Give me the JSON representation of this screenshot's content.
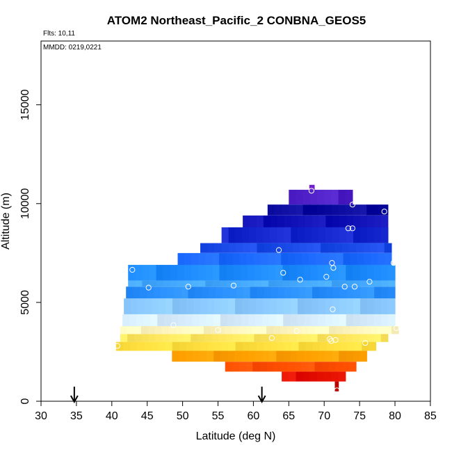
{
  "chart_data": {
    "type": "heatmap",
    "title": "ATOM2 Northeast_Pacific_2 CONBNA_GEOS5",
    "flights_label": "Flts: 10,11",
    "mmdd_label": "MMDD: 0219,0221",
    "xlabel": "Latitude (deg N)",
    "ylabel": "Altitude (m)",
    "xlim": [
      30,
      85
    ],
    "ylim": [
      0,
      18500
    ],
    "x_ticks": [
      30,
      35,
      40,
      45,
      50,
      55,
      60,
      65,
      70,
      75,
      80,
      85
    ],
    "y_ticks": [
      0,
      5000,
      10000,
      15000
    ],
    "grid": false,
    "arrows_latitude": [
      34.7,
      61.2
    ],
    "colors": {
      "palette": [
        "#ffffff",
        "#fff4b8",
        "#ffe95a",
        "#ffc800",
        "#ff9800",
        "#ff5a00",
        "#ff1e00",
        "#cc0000"
      ],
      "cool": [
        "#ffffff",
        "#b4dcff",
        "#1e9bff",
        "#1e64ff",
        "#1414c8",
        "#08089b",
        "#6e28e6"
      ]
    },
    "bands": [
      {
        "alt": [
          10700,
          10950
        ],
        "lat": [
          67.9,
          68.6
        ],
        "color": "#7b2bd8"
      },
      {
        "alt": [
          9950,
          10700
        ],
        "lat": [
          65.0,
          74.0
        ],
        "color": "#4f20c8"
      },
      {
        "alt": [
          9400,
          9950
        ],
        "lat": [
          62.0,
          79.0
        ],
        "color": "#0a0a9e"
      },
      {
        "alt": [
          8800,
          9400
        ],
        "lat": [
          58.5,
          79.0
        ],
        "color": "#1111b8"
      },
      {
        "alt": [
          8000,
          8800
        ],
        "lat": [
          55.5,
          79.0
        ],
        "color": "#1528d0"
      },
      {
        "alt": [
          7500,
          8000
        ],
        "lat": [
          52.5,
          79.5
        ],
        "color": "#1a4be8"
      },
      {
        "alt": [
          6900,
          7500
        ],
        "lat": [
          49.3,
          79.5
        ],
        "color": "#1e6bff"
      },
      {
        "alt": [
          6100,
          6900
        ],
        "lat": [
          42.3,
          80.0
        ],
        "color": "#1e8cff"
      },
      {
        "alt": [
          5800,
          6100
        ],
        "lat": [
          42.3,
          80.0
        ],
        "color": "#44a8ff"
      },
      {
        "alt": [
          5200,
          5800
        ],
        "lat": [
          42.0,
          80.0
        ],
        "color": "#2a90ff"
      },
      {
        "alt": [
          4400,
          5200
        ],
        "lat": [
          41.7,
          80.0
        ],
        "color": "#8ccaff"
      },
      {
        "alt": [
          3800,
          4400
        ],
        "lat": [
          41.5,
          80.0
        ],
        "color": "#d8eeff"
      },
      {
        "alt": [
          3400,
          3800
        ],
        "lat": [
          41.2,
          80.5
        ],
        "color": "#fff6c0"
      },
      {
        "alt": [
          3000,
          3400
        ],
        "lat": [
          41.2,
          79.0
        ],
        "color": "#ffe860"
      },
      {
        "alt": [
          2550,
          3000
        ],
        "lat": [
          40.6,
          77.3
        ],
        "color": "#ffe040"
      },
      {
        "alt": [
          2000,
          2550
        ],
        "lat": [
          48.5,
          76.0
        ],
        "color": "#ffa000"
      },
      {
        "alt": [
          1500,
          2000
        ],
        "lat": [
          56.0,
          74.5
        ],
        "color": "#ff5000"
      },
      {
        "alt": [
          1000,
          1500
        ],
        "lat": [
          64.0,
          73.0
        ],
        "color": "#e61000"
      },
      {
        "alt": [
          500,
          1000
        ],
        "lat": [
          71.5,
          72.0
        ],
        "color": "#c80000"
      }
    ],
    "observations": [
      {
        "x": 68.2,
        "y": 10650
      },
      {
        "x": 74.0,
        "y": 9950
      },
      {
        "x": 78.5,
        "y": 9600
      },
      {
        "x": 73.4,
        "y": 8750
      },
      {
        "x": 74.0,
        "y": 8750
      },
      {
        "x": 63.6,
        "y": 7650
      },
      {
        "x": 71.1,
        "y": 7000
      },
      {
        "x": 71.3,
        "y": 6750
      },
      {
        "x": 79.8,
        "y": 7000
      },
      {
        "x": 42.9,
        "y": 6650
      },
      {
        "x": 64.2,
        "y": 6500
      },
      {
        "x": 66.6,
        "y": 6150
      },
      {
        "x": 70.3,
        "y": 6300
      },
      {
        "x": 76.4,
        "y": 6050
      },
      {
        "x": 45.2,
        "y": 5750
      },
      {
        "x": 50.8,
        "y": 5800
      },
      {
        "x": 57.2,
        "y": 5850
      },
      {
        "x": 72.9,
        "y": 5800
      },
      {
        "x": 74.3,
        "y": 5800
      },
      {
        "x": 71.2,
        "y": 4650
      },
      {
        "x": 48.7,
        "y": 3850
      },
      {
        "x": 55.0,
        "y": 3600
      },
      {
        "x": 66.1,
        "y": 3550
      },
      {
        "x": 80.2,
        "y": 3700
      },
      {
        "x": 62.6,
        "y": 3200
      },
      {
        "x": 70.8,
        "y": 3150
      },
      {
        "x": 71.0,
        "y": 3050
      },
      {
        "x": 71.6,
        "y": 3100
      },
      {
        "x": 75.8,
        "y": 2950
      },
      {
        "x": 40.8,
        "y": 2800
      },
      {
        "x": 71.8,
        "y": 550
      }
    ]
  }
}
